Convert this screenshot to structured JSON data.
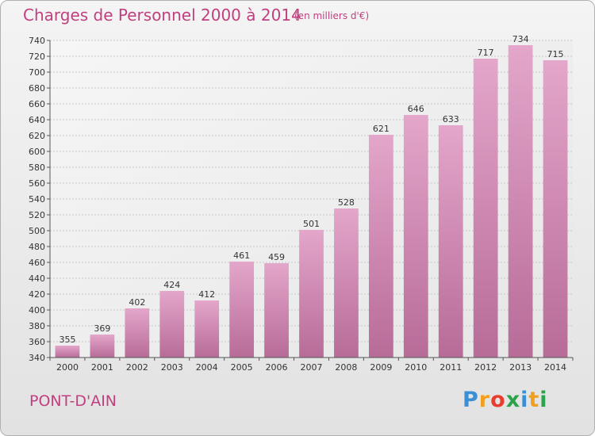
{
  "chart_data": {
    "type": "bar",
    "title": "Charges de Personnel 2000 à 2014",
    "subtitle": "(en milliers d'€)",
    "categories": [
      "2000",
      "2001",
      "2002",
      "2003",
      "2004",
      "2005",
      "2006",
      "2007",
      "2008",
      "2009",
      "2010",
      "2011",
      "2012",
      "2013",
      "2014"
    ],
    "values": [
      355,
      369,
      402,
      424,
      412,
      461,
      459,
      501,
      528,
      621,
      646,
      633,
      717,
      734,
      715
    ],
    "xlabel": "",
    "ylabel": "",
    "ylim": [
      340,
      740
    ],
    "ytick_step": 20,
    "grid": true,
    "bar_color": "#c77aa6"
  },
  "commune": "PONT-D'AIN",
  "logo": {
    "letters": [
      "P",
      "r",
      "o",
      "x",
      "i",
      "t",
      "i"
    ],
    "colors": [
      "#3b8fd4",
      "#f0a020",
      "#e83d2f",
      "#2aa34a",
      "#3b8fd4",
      "#f0a020",
      "#2aa34a"
    ]
  }
}
